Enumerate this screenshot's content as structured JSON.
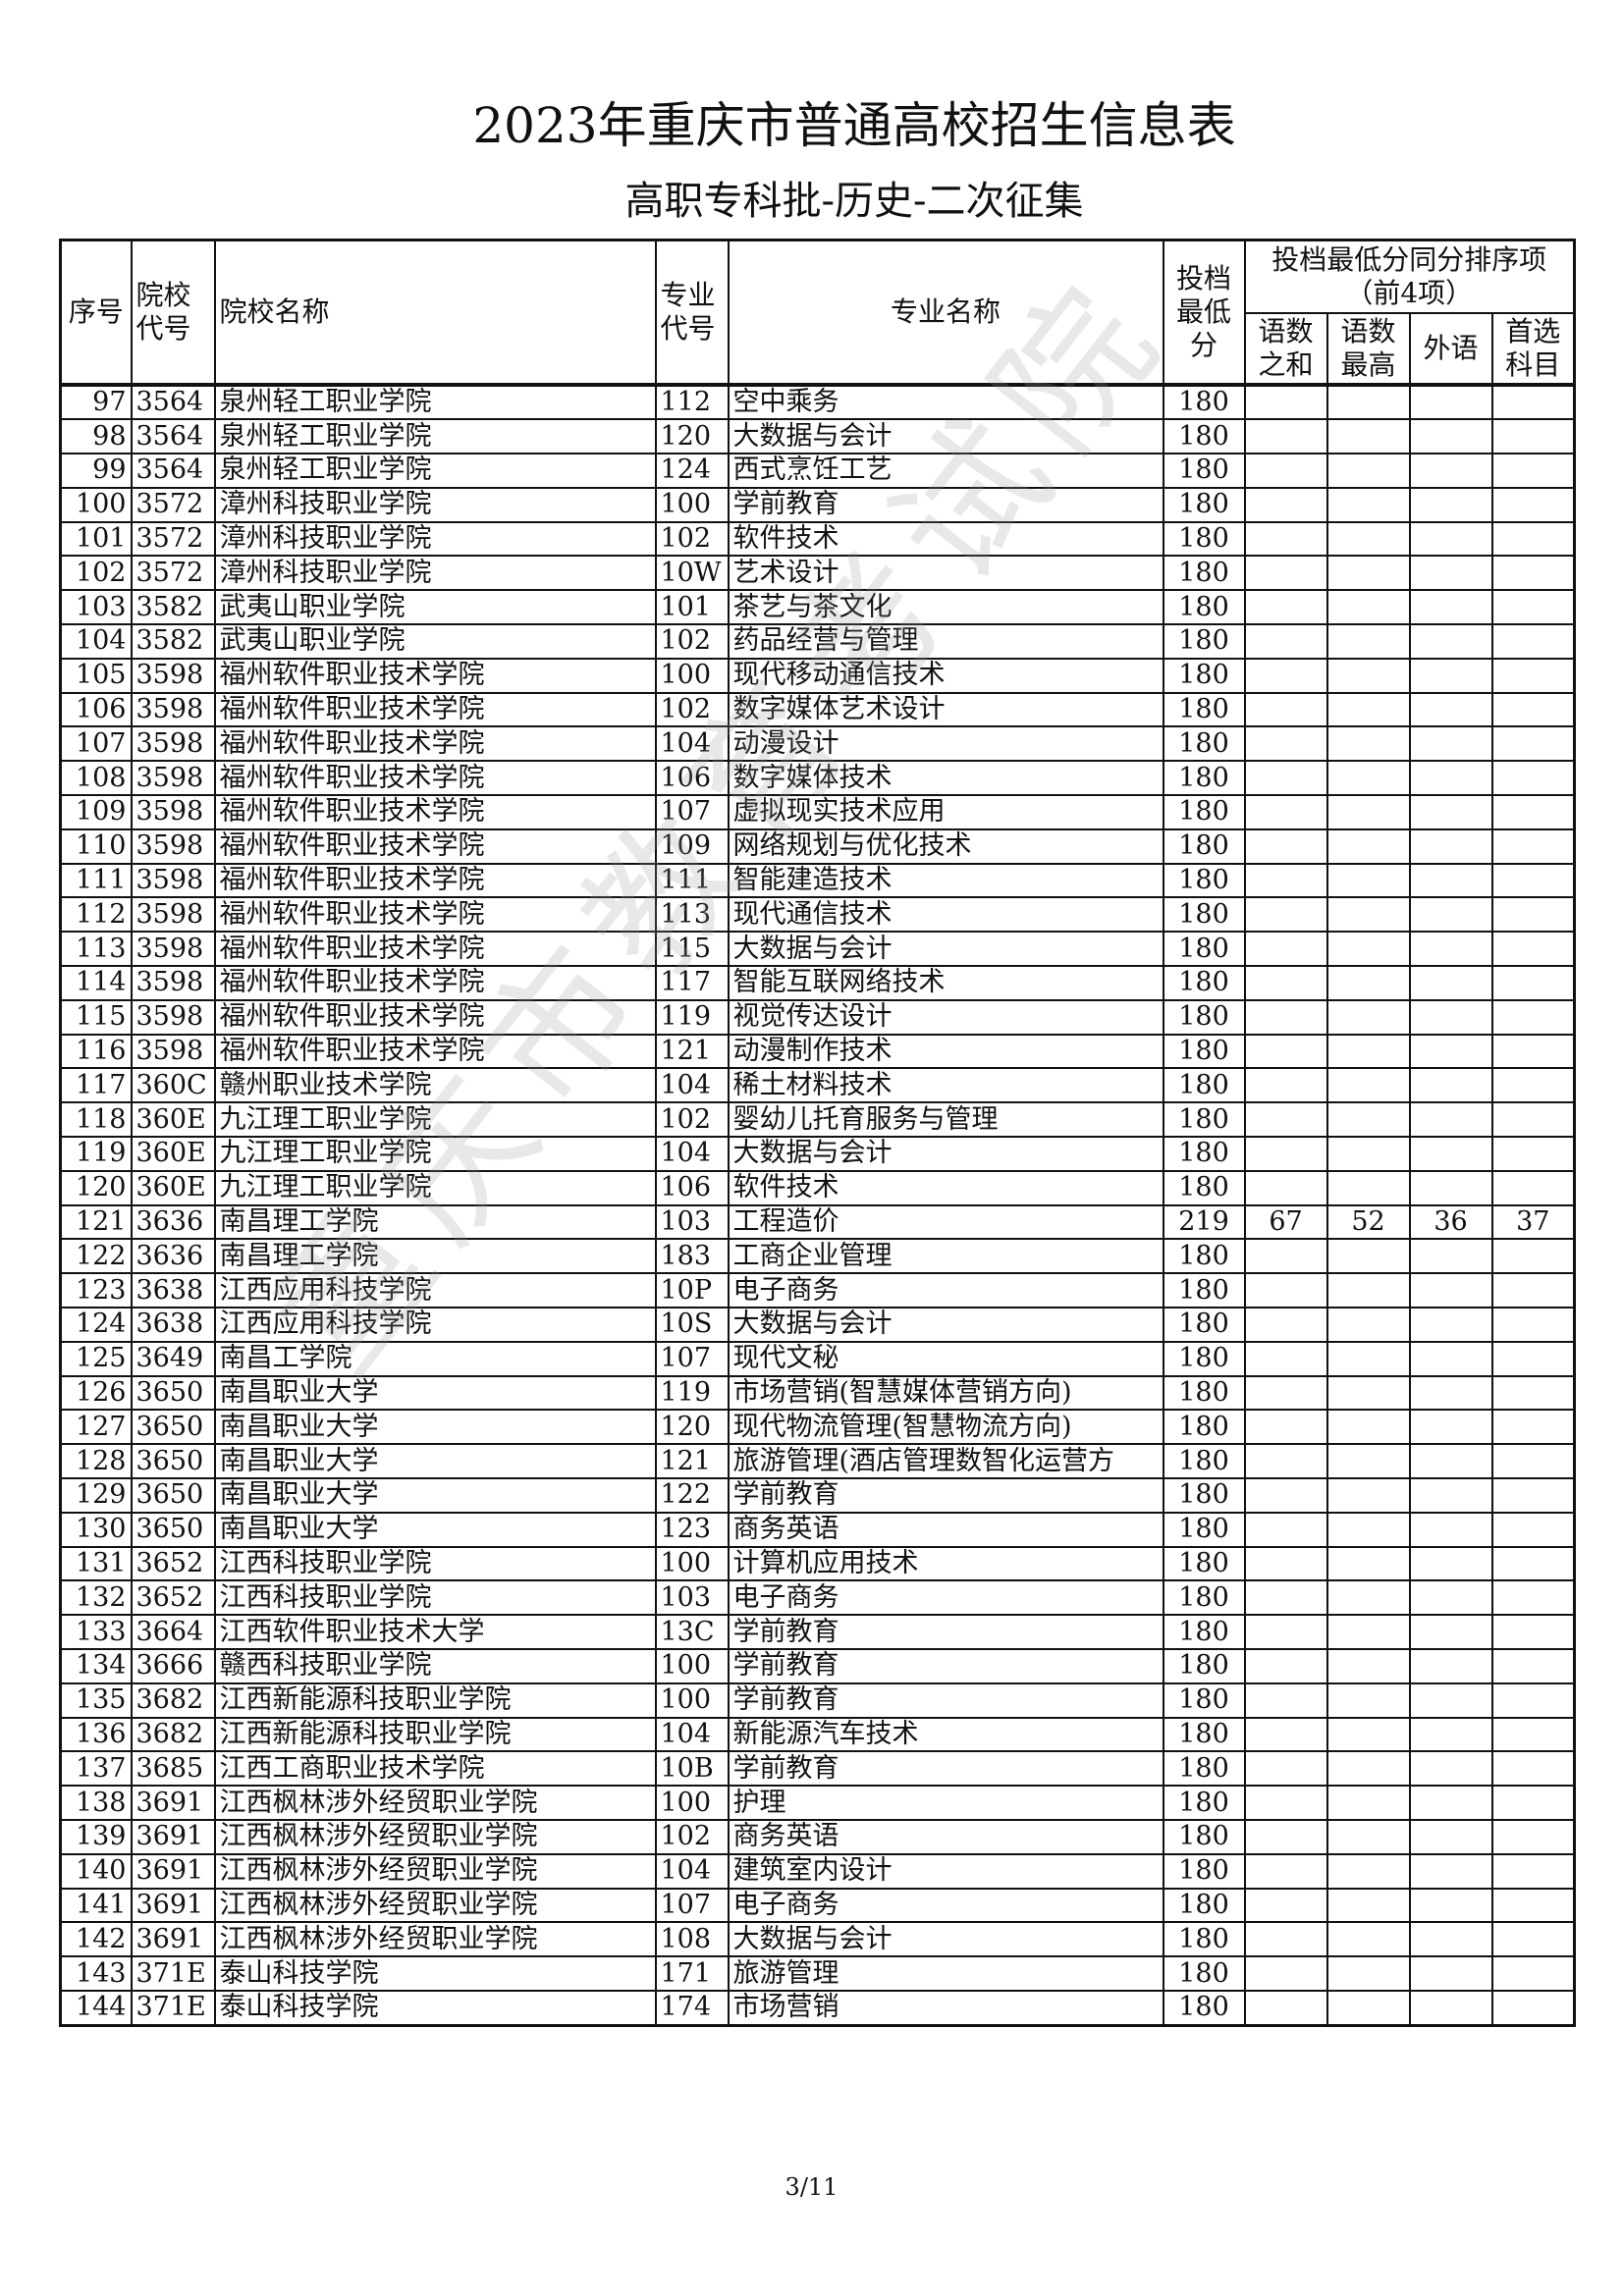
{
  "title": "2023年重庆市普通高校招生信息表",
  "subtitle": "高职专科批-历史-二次征集",
  "watermark": "重庆市教育考试院",
  "footer": "3/11",
  "headers": {
    "seq": "序号",
    "school_code": "院校代号",
    "school_name": "院校名称",
    "major_code": "专业代号",
    "major_name": "专业名称",
    "min_score": "投档最低分",
    "tiebreak": "投档最低分同分排序项（前4项）",
    "tb1": "语数之和",
    "tb2": "语数最高",
    "tb3": "外语",
    "tb4": "首选科目"
  },
  "rows": [
    [
      "97",
      "3564",
      "泉州轻工职业学院",
      "112",
      "空中乘务",
      "180",
      "",
      "",
      "",
      ""
    ],
    [
      "98",
      "3564",
      "泉州轻工职业学院",
      "120",
      "大数据与会计",
      "180",
      "",
      "",
      "",
      ""
    ],
    [
      "99",
      "3564",
      "泉州轻工职业学院",
      "124",
      "西式烹饪工艺",
      "180",
      "",
      "",
      "",
      ""
    ],
    [
      "100",
      "3572",
      "漳州科技职业学院",
      "100",
      "学前教育",
      "180",
      "",
      "",
      "",
      ""
    ],
    [
      "101",
      "3572",
      "漳州科技职业学院",
      "102",
      "软件技术",
      "180",
      "",
      "",
      "",
      ""
    ],
    [
      "102",
      "3572",
      "漳州科技职业学院",
      "10W",
      "艺术设计",
      "180",
      "",
      "",
      "",
      ""
    ],
    [
      "103",
      "3582",
      "武夷山职业学院",
      "101",
      "茶艺与茶文化",
      "180",
      "",
      "",
      "",
      ""
    ],
    [
      "104",
      "3582",
      "武夷山职业学院",
      "102",
      "药品经营与管理",
      "180",
      "",
      "",
      "",
      ""
    ],
    [
      "105",
      "3598",
      "福州软件职业技术学院",
      "100",
      "现代移动通信技术",
      "180",
      "",
      "",
      "",
      ""
    ],
    [
      "106",
      "3598",
      "福州软件职业技术学院",
      "102",
      "数字媒体艺术设计",
      "180",
      "",
      "",
      "",
      ""
    ],
    [
      "107",
      "3598",
      "福州软件职业技术学院",
      "104",
      "动漫设计",
      "180",
      "",
      "",
      "",
      ""
    ],
    [
      "108",
      "3598",
      "福州软件职业技术学院",
      "106",
      "数字媒体技术",
      "180",
      "",
      "",
      "",
      ""
    ],
    [
      "109",
      "3598",
      "福州软件职业技术学院",
      "107",
      "虚拟现实技术应用",
      "180",
      "",
      "",
      "",
      ""
    ],
    [
      "110",
      "3598",
      "福州软件职业技术学院",
      "109",
      "网络规划与优化技术",
      "180",
      "",
      "",
      "",
      ""
    ],
    [
      "111",
      "3598",
      "福州软件职业技术学院",
      "111",
      "智能建造技术",
      "180",
      "",
      "",
      "",
      ""
    ],
    [
      "112",
      "3598",
      "福州软件职业技术学院",
      "113",
      "现代通信技术",
      "180",
      "",
      "",
      "",
      ""
    ],
    [
      "113",
      "3598",
      "福州软件职业技术学院",
      "115",
      "大数据与会计",
      "180",
      "",
      "",
      "",
      ""
    ],
    [
      "114",
      "3598",
      "福州软件职业技术学院",
      "117",
      "智能互联网络技术",
      "180",
      "",
      "",
      "",
      ""
    ],
    [
      "115",
      "3598",
      "福州软件职业技术学院",
      "119",
      "视觉传达设计",
      "180",
      "",
      "",
      "",
      ""
    ],
    [
      "116",
      "3598",
      "福州软件职业技术学院",
      "121",
      "动漫制作技术",
      "180",
      "",
      "",
      "",
      ""
    ],
    [
      "117",
      "360C",
      "赣州职业技术学院",
      "104",
      "稀土材料技术",
      "180",
      "",
      "",
      "",
      ""
    ],
    [
      "118",
      "360E",
      "九江理工职业学院",
      "102",
      "婴幼儿托育服务与管理",
      "180",
      "",
      "",
      "",
      ""
    ],
    [
      "119",
      "360E",
      "九江理工职业学院",
      "104",
      "大数据与会计",
      "180",
      "",
      "",
      "",
      ""
    ],
    [
      "120",
      "360E",
      "九江理工职业学院",
      "106",
      "软件技术",
      "180",
      "",
      "",
      "",
      ""
    ],
    [
      "121",
      "3636",
      "南昌理工学院",
      "103",
      "工程造价",
      "219",
      "67",
      "52",
      "36",
      "37"
    ],
    [
      "122",
      "3636",
      "南昌理工学院",
      "183",
      "工商企业管理",
      "180",
      "",
      "",
      "",
      ""
    ],
    [
      "123",
      "3638",
      "江西应用科技学院",
      "10P",
      "电子商务",
      "180",
      "",
      "",
      "",
      ""
    ],
    [
      "124",
      "3638",
      "江西应用科技学院",
      "10S",
      "大数据与会计",
      "180",
      "",
      "",
      "",
      ""
    ],
    [
      "125",
      "3649",
      "南昌工学院",
      "107",
      "现代文秘",
      "180",
      "",
      "",
      "",
      ""
    ],
    [
      "126",
      "3650",
      "南昌职业大学",
      "119",
      "市场营销(智慧媒体营销方向)",
      "180",
      "",
      "",
      "",
      ""
    ],
    [
      "127",
      "3650",
      "南昌职业大学",
      "120",
      "现代物流管理(智慧物流方向)",
      "180",
      "",
      "",
      "",
      ""
    ],
    [
      "128",
      "3650",
      "南昌职业大学",
      "121",
      "旅游管理(酒店管理数智化运营方",
      "180",
      "",
      "",
      "",
      ""
    ],
    [
      "129",
      "3650",
      "南昌职业大学",
      "122",
      "学前教育",
      "180",
      "",
      "",
      "",
      ""
    ],
    [
      "130",
      "3650",
      "南昌职业大学",
      "123",
      "商务英语",
      "180",
      "",
      "",
      "",
      ""
    ],
    [
      "131",
      "3652",
      "江西科技职业学院",
      "100",
      "计算机应用技术",
      "180",
      "",
      "",
      "",
      ""
    ],
    [
      "132",
      "3652",
      "江西科技职业学院",
      "103",
      "电子商务",
      "180",
      "",
      "",
      "",
      ""
    ],
    [
      "133",
      "3664",
      "江西软件职业技术大学",
      "13C",
      "学前教育",
      "180",
      "",
      "",
      "",
      ""
    ],
    [
      "134",
      "3666",
      "赣西科技职业学院",
      "100",
      "学前教育",
      "180",
      "",
      "",
      "",
      ""
    ],
    [
      "135",
      "3682",
      "江西新能源科技职业学院",
      "100",
      "学前教育",
      "180",
      "",
      "",
      "",
      ""
    ],
    [
      "136",
      "3682",
      "江西新能源科技职业学院",
      "104",
      "新能源汽车技术",
      "180",
      "",
      "",
      "",
      ""
    ],
    [
      "137",
      "3685",
      "江西工商职业技术学院",
      "10B",
      "学前教育",
      "180",
      "",
      "",
      "",
      ""
    ],
    [
      "138",
      "3691",
      "江西枫林涉外经贸职业学院",
      "100",
      "护理",
      "180",
      "",
      "",
      "",
      ""
    ],
    [
      "139",
      "3691",
      "江西枫林涉外经贸职业学院",
      "102",
      "商务英语",
      "180",
      "",
      "",
      "",
      ""
    ],
    [
      "140",
      "3691",
      "江西枫林涉外经贸职业学院",
      "104",
      "建筑室内设计",
      "180",
      "",
      "",
      "",
      ""
    ],
    [
      "141",
      "3691",
      "江西枫林涉外经贸职业学院",
      "107",
      "电子商务",
      "180",
      "",
      "",
      "",
      ""
    ],
    [
      "142",
      "3691",
      "江西枫林涉外经贸职业学院",
      "108",
      "大数据与会计",
      "180",
      "",
      "",
      "",
      ""
    ],
    [
      "143",
      "371E",
      "泰山科技学院",
      "171",
      "旅游管理",
      "180",
      "",
      "",
      "",
      ""
    ],
    [
      "144",
      "371E",
      "泰山科技学院",
      "174",
      "市场营销",
      "180",
      "",
      "",
      "",
      ""
    ]
  ]
}
